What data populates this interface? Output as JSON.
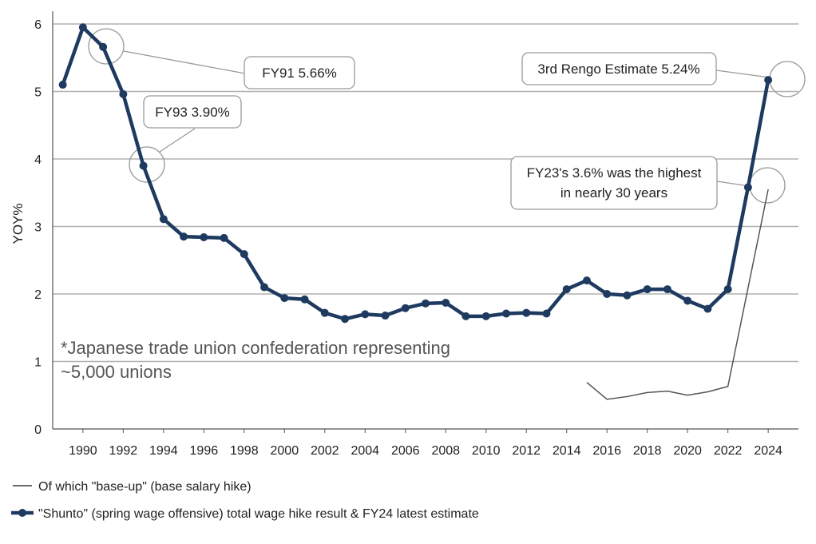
{
  "chart_data": {
    "type": "line",
    "ylabel": "YOY%",
    "xlabel": "",
    "ylim": [
      0,
      6
    ],
    "xlim": [
      1989,
      2025
    ],
    "yticks": [
      "0",
      "1",
      "2",
      "3",
      "4",
      "5",
      "6"
    ],
    "xticks": [
      "1990",
      "1992",
      "1994",
      "1996",
      "1998",
      "2000",
      "2002",
      "2004",
      "2006",
      "2008",
      "2010",
      "2012",
      "2014",
      "2016",
      "2018",
      "2020",
      "2022",
      "2024"
    ],
    "grid": "horizontal",
    "legend_position": "bottom",
    "series": [
      {
        "name": "\"Shunto\" (spring wage offensive) total wage hike result & FY24 latest estimate",
        "color": "#1f3a5f",
        "marker": "circle",
        "x": [
          1989,
          1990,
          1991,
          1992,
          1993,
          1994,
          1995,
          1996,
          1997,
          1998,
          1999,
          2000,
          2001,
          2002,
          2003,
          2004,
          2005,
          2006,
          2007,
          2008,
          2009,
          2010,
          2011,
          2012,
          2013,
          2014,
          2015,
          2016,
          2017,
          2018,
          2019,
          2020,
          2021,
          2022,
          2023,
          2024
        ],
        "y": [
          5.1,
          5.95,
          5.66,
          4.96,
          3.9,
          3.11,
          2.85,
          2.84,
          2.83,
          2.59,
          2.1,
          1.94,
          1.92,
          1.72,
          1.63,
          1.7,
          1.68,
          1.79,
          1.86,
          1.87,
          1.67,
          1.67,
          1.71,
          1.72,
          1.71,
          2.07,
          2.2,
          2.0,
          1.98,
          2.07,
          2.07,
          1.9,
          1.78,
          2.07,
          3.58,
          5.17
        ]
      },
      {
        "name": "Of which \"base-up\" (base salary hike)",
        "color": "#555555",
        "marker": "none",
        "x": [
          2015,
          2016,
          2017,
          2018,
          2019,
          2020,
          2021,
          2022,
          2024
        ],
        "y": [
          0.69,
          0.44,
          0.48,
          0.54,
          0.56,
          0.5,
          0.55,
          0.63,
          3.55
        ]
      }
    ],
    "annotations": [
      {
        "text": "FY91 5.66%",
        "year": 1991,
        "value": 5.66
      },
      {
        "text": "FY93 3.90%",
        "year": 1993,
        "value": 3.9
      },
      {
        "text": "3rd Rengo Estimate 5.24%",
        "year": 2024,
        "value": 5.17
      },
      {
        "text": "FY23's 3.6% was the highest in nearly 30 years",
        "year": 2023,
        "value": 3.58
      }
    ],
    "note": "*Japanese trade union confederation representing ~5,000 unions"
  },
  "callouts": {
    "fy91": "FY91 5.66%",
    "fy93": "FY93 3.90%",
    "rengo": "3rd Rengo Estimate 5.24%",
    "fy23_line1": "FY23's 3.6% was the highest",
    "fy23_line2": "in nearly 30 years"
  },
  "note": {
    "line1": "*Japanese trade union confederation representing",
    "line2": "~5,000 unions"
  },
  "legend": {
    "base_up": "Of which \"base-up\" (base salary hike)",
    "shunto": "\"Shunto\" (spring wage offensive) total wage hike result & FY24 latest estimate"
  },
  "colors": {
    "series_main": "#1f3a5f",
    "series_base": "#555555",
    "grid": "#b0b0b0",
    "callout_border": "#9a9a9a"
  }
}
